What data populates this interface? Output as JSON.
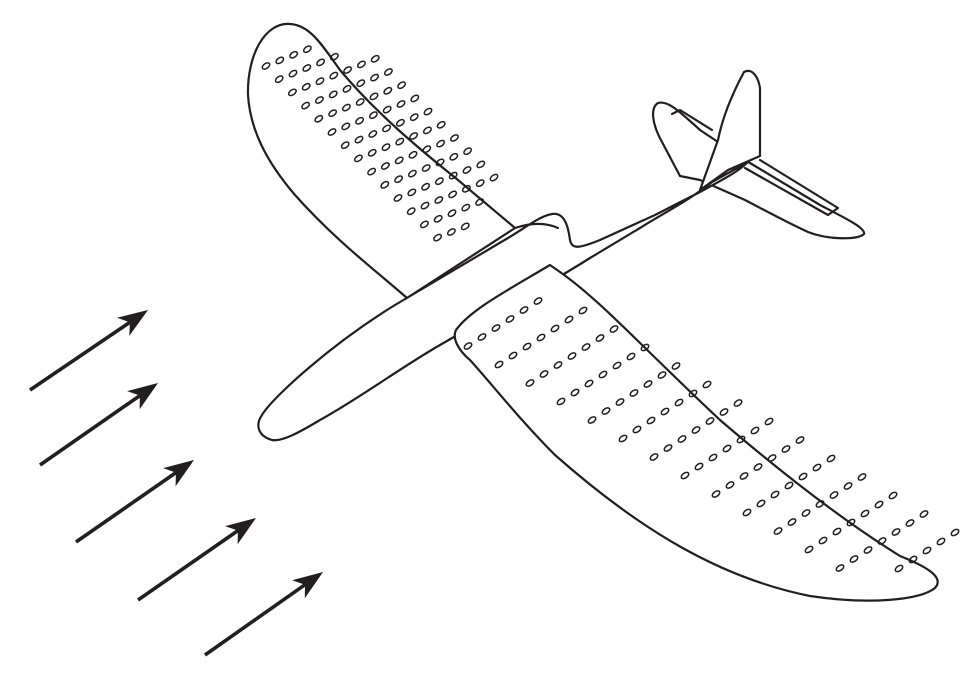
{
  "figure": {
    "subject": "glider-with-perforated-wings",
    "colors": {
      "ink": "#231f20",
      "background": "#ffffff"
    },
    "airflow_arrow_count": 5,
    "perforation_grid": {
      "far_wing": {
        "rows": 14,
        "columns": 7
      },
      "near_wing": {
        "rows": 14,
        "columns": 7
      }
    }
  }
}
